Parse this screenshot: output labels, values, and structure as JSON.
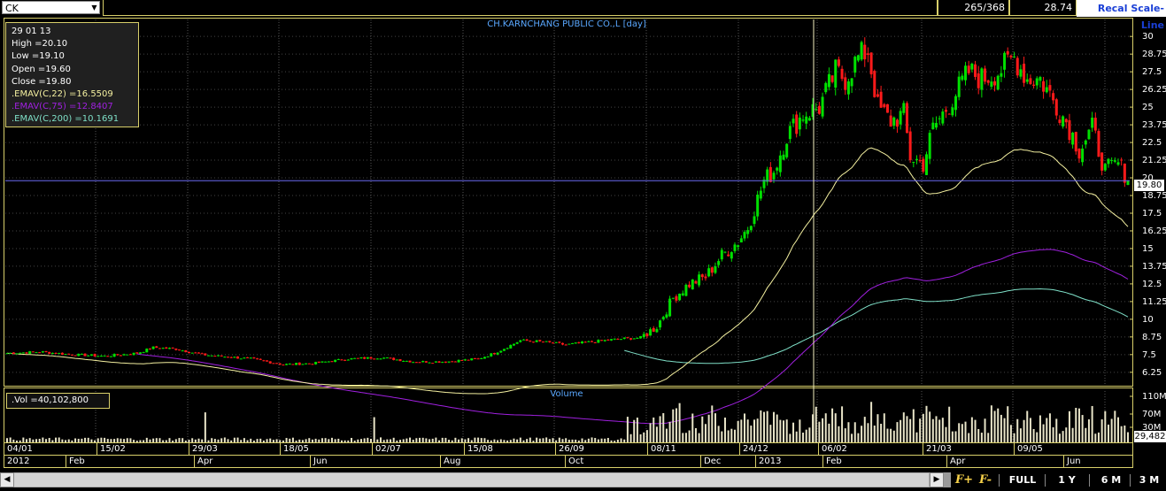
{
  "toolbar": {
    "symbol": "CK",
    "counter": "265/368",
    "last_value": "28.74",
    "recal_label": "Recal Scale-Line"
  },
  "chart": {
    "title": "CH.KARNCHANG PUBLIC CO.,L [day]",
    "volume_title": "Volume",
    "current_price_badge": "19.80",
    "volume_badge": "29,482"
  },
  "info": {
    "date": "29 01 13",
    "high": "High  =20.10",
    "low": "Low   =19.10",
    "open": "Open  =19.60",
    "close": "Close  =19.80",
    "emav22": ".EMAV(C,22)   =16.5509",
    "emav75": ".EMAV(C,75)   =12.8407",
    "emav200": ".EMAV(C,200)   =10.1691"
  },
  "volume_info": ".Vol   =40,102,800",
  "xaxis": {
    "dates": [
      "04/01",
      "15/02",
      "29/03",
      "18/05",
      "02/07",
      "15/08",
      "26/09",
      "08/11",
      "24/12",
      "06/02",
      "21/03",
      "09/05"
    ],
    "months": [
      "2012",
      "Feb",
      "Apr",
      "Jun",
      "Aug",
      "Oct",
      "Dec",
      "2013",
      "Feb",
      "Apr",
      "Jun"
    ]
  },
  "timeframes": {
    "f1": "F+",
    "f2": "F-",
    "full": "FULL",
    "y1": "1 Y",
    "m6": "6 M",
    "m3": "3 M"
  },
  "colors": {
    "up": "#00e000",
    "down": "#ff1a1a",
    "ema22": "#f4f0a0",
    "ema75": "#a020e0",
    "ema200": "#7fe0c8",
    "title": "#5aa8ff",
    "border": "#d8cf6a"
  },
  "chart_data": {
    "type": "candlestick",
    "title": "CH.KARNCHANG PUBLIC CO.,L [day]",
    "y_ticks": [
      30,
      28.75,
      27.5,
      26.25,
      25,
      23.75,
      22.5,
      21.25,
      20,
      18.75,
      17.5,
      16.25,
      15,
      13.75,
      12.5,
      11.25,
      10,
      8.75,
      7.5,
      6.25
    ],
    "ylim": [
      5.3,
      31.2
    ],
    "volume_ticks": [
      "110M",
      "70M",
      "30M"
    ],
    "last_close": 19.8,
    "close_anchors": [
      [
        0,
        7.6
      ],
      [
        10,
        7.7
      ],
      [
        20,
        7.5
      ],
      [
        30,
        7.4
      ],
      [
        40,
        7.6
      ],
      [
        45,
        8.0
      ],
      [
        52,
        7.9
      ],
      [
        60,
        7.5
      ],
      [
        70,
        7.3
      ],
      [
        75,
        7.2
      ],
      [
        85,
        6.8
      ],
      [
        95,
        6.9
      ],
      [
        105,
        7.2
      ],
      [
        115,
        7.3
      ],
      [
        125,
        7.0
      ],
      [
        135,
        7.0
      ],
      [
        145,
        7.2
      ],
      [
        150,
        7.6
      ],
      [
        158,
        8.5
      ],
      [
        165,
        8.4
      ],
      [
        172,
        8.2
      ],
      [
        180,
        8.4
      ],
      [
        188,
        8.6
      ],
      [
        195,
        8.7
      ],
      [
        200,
        9.5
      ],
      [
        205,
        11.5
      ],
      [
        210,
        12.5
      ],
      [
        215,
        13.0
      ],
      [
        220,
        14.5
      ],
      [
        225,
        15.5
      ],
      [
        228,
        16.5
      ],
      [
        231,
        18.5
      ],
      [
        233,
        19.8
      ],
      [
        236,
        20.5
      ],
      [
        240,
        23.0
      ],
      [
        245,
        24.5
      ],
      [
        250,
        25.0
      ],
      [
        255,
        27.5
      ],
      [
        258,
        27.0
      ],
      [
        262,
        28.5
      ],
      [
        265,
        29.0
      ],
      [
        268,
        25.0
      ],
      [
        272,
        24.0
      ],
      [
        276,
        24.5
      ],
      [
        278,
        21.5
      ],
      [
        282,
        21.0
      ],
      [
        285,
        23.5
      ],
      [
        288,
        24.5
      ],
      [
        292,
        26.0
      ],
      [
        296,
        27.5
      ],
      [
        300,
        27.0
      ],
      [
        305,
        27.5
      ],
      [
        310,
        28.5
      ],
      [
        314,
        27.0
      ],
      [
        318,
        27.0
      ],
      [
        322,
        25.5
      ],
      [
        326,
        24.0
      ],
      [
        330,
        22.0
      ],
      [
        334,
        23.5
      ],
      [
        338,
        20.5
      ],
      [
        342,
        21.0
      ],
      [
        345,
        20.0
      ]
    ],
    "ema_final": {
      "ema22": 16.5509,
      "ema75": 12.8407,
      "ema200": 10.1691
    }
  }
}
